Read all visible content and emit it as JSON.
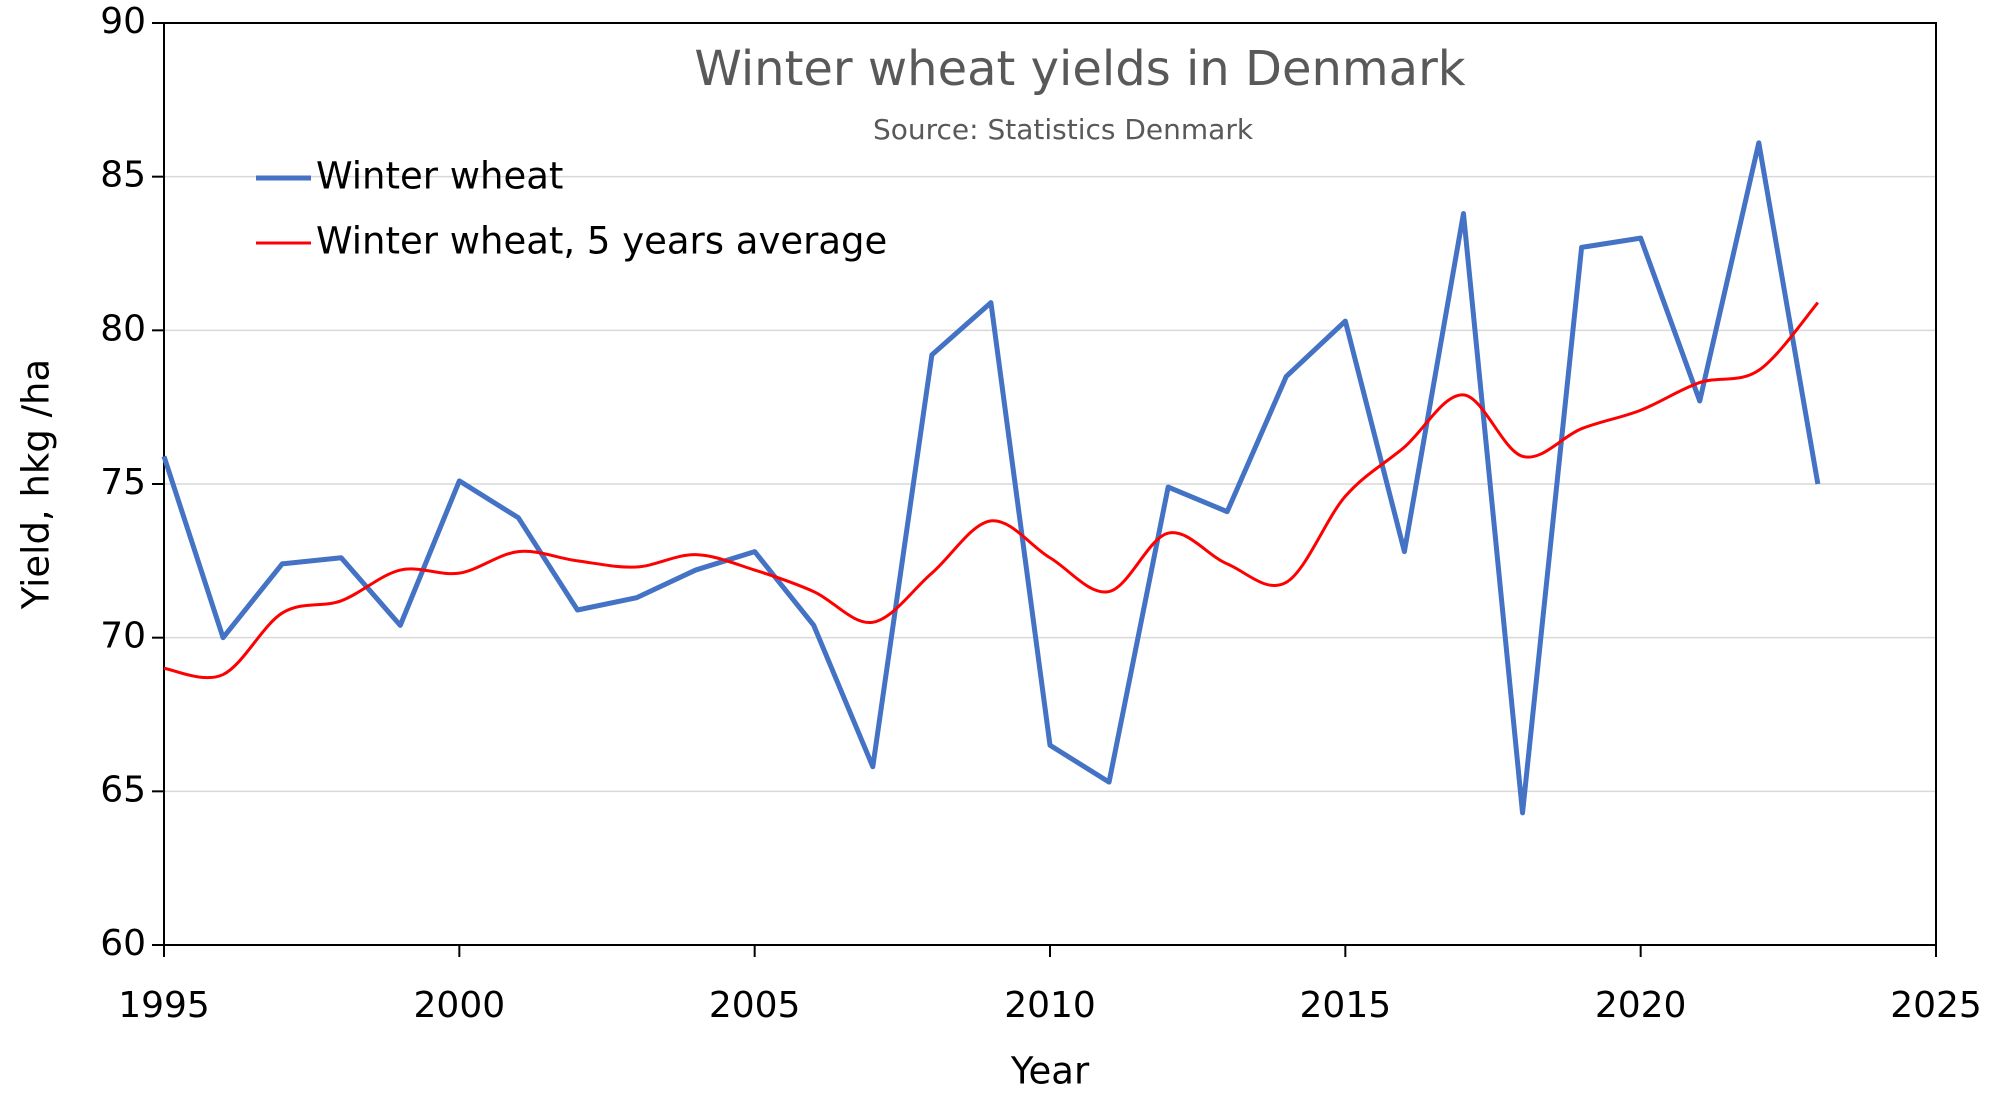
{
  "chart_data": {
    "type": "line",
    "title": "Winter wheat yields in Denmark",
    "subtitle": "Source: Statistics Denmark",
    "x_label": "Year",
    "y_label": "Yield, hkg /ha",
    "x": [
      1995,
      1996,
      1997,
      1998,
      1999,
      2000,
      2001,
      2002,
      2003,
      2004,
      2005,
      2006,
      2007,
      2008,
      2009,
      2010,
      2011,
      2012,
      2013,
      2014,
      2015,
      2016,
      2017,
      2018,
      2019,
      2020,
      2021,
      2022,
      2023
    ],
    "series": [
      {
        "name": "Winter wheat",
        "color": "#4472c4",
        "smooth": false,
        "values": [
          75.9,
          70.0,
          72.4,
          72.6,
          70.4,
          75.1,
          73.9,
          70.9,
          71.3,
          72.2,
          72.8,
          70.4,
          65.8,
          79.2,
          80.9,
          66.5,
          65.3,
          74.9,
          74.1,
          78.5,
          80.3,
          72.8,
          83.8,
          64.3,
          82.7,
          83.0,
          77.7,
          86.1,
          75.0
        ]
      },
      {
        "name": "Winter wheat, 5 years average",
        "color": "#ff0000",
        "smooth": true,
        "values": [
          69.0,
          68.8,
          70.8,
          71.2,
          72.2,
          72.1,
          72.8,
          72.5,
          72.3,
          72.7,
          72.2,
          71.5,
          70.5,
          72.1,
          73.8,
          72.6,
          71.5,
          73.4,
          72.4,
          71.8,
          74.6,
          76.2,
          77.9,
          75.9,
          76.8,
          77.4,
          78.3,
          78.7,
          80.9
        ]
      }
    ],
    "xlim": [
      1995,
      2025
    ],
    "xticks": [
      1995,
      2000,
      2005,
      2010,
      2015,
      2020,
      2025
    ],
    "ylim": [
      60,
      90
    ],
    "yticks": [
      60,
      65,
      70,
      75,
      80,
      85,
      90
    ],
    "grid": true,
    "legend": "upper left"
  }
}
